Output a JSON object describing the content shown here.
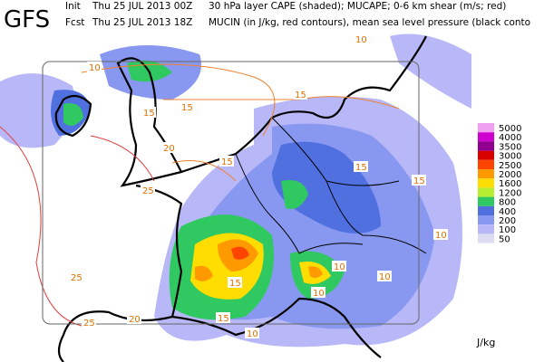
{
  "header": {
    "model": "GFS",
    "init_label": "Init",
    "init_time": "Thu 25 JUL 2013 00Z",
    "init_desc": "30 hPa layer CAPE (shaded); MUCAPE; 0-6 km shear (m/s; red)",
    "fcst_label": "Fcst",
    "fcst_time": "Thu 25 JUL 2013 18Z",
    "fcst_desc": "MUCIN (in J/kg, red contours), mean sea level pressure (black conto"
  },
  "legend": {
    "levels": [
      {
        "label": "5000",
        "color": "#f0a0f0"
      },
      {
        "label": "4000",
        "color": "#d000d0"
      },
      {
        "label": "3500",
        "color": "#900090"
      },
      {
        "label": "3000",
        "color": "#d80000"
      },
      {
        "label": "2500",
        "color": "#ff4400"
      },
      {
        "label": "2000",
        "color": "#ff9900"
      },
      {
        "label": "1600",
        "color": "#ffdd00"
      },
      {
        "label": "1200",
        "color": "#b8ee30"
      },
      {
        "label": "800",
        "color": "#30c860"
      },
      {
        "label": "400",
        "color": "#5070e0"
      },
      {
        "label": "200",
        "color": "#8898f0"
      },
      {
        "label": "100",
        "color": "#b8b8f8"
      },
      {
        "label": "50",
        "color": "#dcdcf4"
      }
    ],
    "unit": "J/kg"
  },
  "map": {
    "contour_labels": [
      "10",
      "10",
      "15",
      "15",
      "15",
      "20",
      "25",
      "15",
      "15",
      "25",
      "20",
      "25",
      "15",
      "15",
      "10",
      "10",
      "15",
      "10",
      "10",
      "10"
    ]
  }
}
